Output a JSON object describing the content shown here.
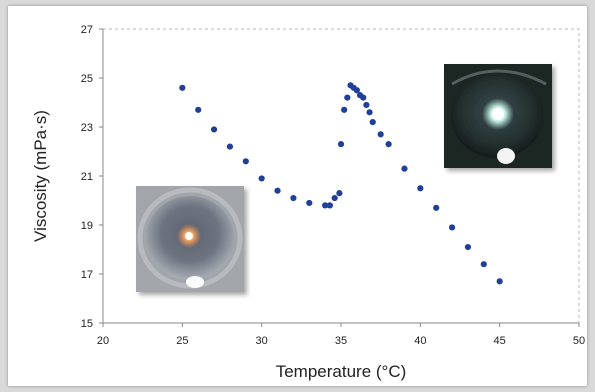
{
  "chart_data": {
    "type": "scatter",
    "title": "",
    "xlabel": "Temperature (°C)",
    "ylabel": "Viscosity (mPa·s)",
    "xlim": [
      20,
      50
    ],
    "ylim": [
      15,
      27
    ],
    "xticks": [
      "20",
      "25",
      "30",
      "35",
      "40",
      "45",
      "50"
    ],
    "yticks": [
      "15",
      "17",
      "19",
      "21",
      "23",
      "25",
      "27"
    ],
    "grid": false,
    "marker_color": "#1f3f99",
    "series": [
      {
        "x": [
          25,
          26,
          27,
          28,
          29,
          30,
          31,
          32,
          33,
          34,
          34.3,
          34.6,
          34.9,
          35,
          35.2,
          35.4,
          35.6,
          35.8,
          36,
          36.2,
          36.4,
          36.6,
          36.8,
          37,
          37.5,
          38,
          39,
          40,
          41,
          42,
          43,
          44,
          45
        ],
        "y": [
          24.6,
          23.7,
          22.9,
          22.2,
          21.6,
          20.9,
          20.4,
          20.1,
          19.9,
          19.8,
          19.8,
          20.1,
          20.3,
          22.3,
          23.7,
          24.2,
          24.7,
          24.6,
          24.5,
          24.3,
          24.2,
          23.9,
          23.6,
          23.2,
          22.7,
          22.3,
          21.3,
          20.5,
          19.7,
          18.9,
          18.1,
          17.4,
          16.7
        ]
      }
    ],
    "insets": [
      {
        "name": "inset-photo-low-temp"
      },
      {
        "name": "inset-photo-high-temp"
      }
    ]
  }
}
